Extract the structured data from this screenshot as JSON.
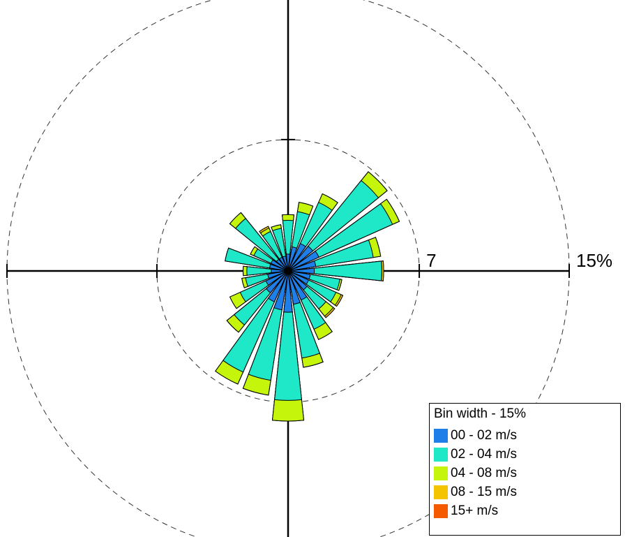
{
  "chart_data": {
    "type": "polar-bar",
    "ring_labels": [
      "7",
      "15%"
    ],
    "ring_values": [
      7,
      15
    ],
    "legend_title": "Bin width - 15%",
    "bins": [
      {
        "label": "00 - 02 m/s",
        "color": "#1e7fe8"
      },
      {
        "label": "02 - 04 m/s",
        "color": "#1ee8c8"
      },
      {
        "label": "04 - 08 m/s",
        "color": "#c4f50a"
      },
      {
        "label": "08 - 15 m/s",
        "color": "#f5c400"
      },
      {
        "label": "15+ m/s",
        "color": "#f55a00"
      }
    ],
    "directions_deg": [
      0,
      15,
      30,
      45,
      60,
      75,
      90,
      105,
      120,
      135,
      150,
      165,
      180,
      195,
      210,
      225,
      240,
      255,
      270,
      285,
      300,
      315,
      330,
      345
    ],
    "cumulative_percent": [
      [
        0.9,
        2.7,
        3.0,
        3.0,
        3.0
      ],
      [
        1.3,
        3.2,
        3.7,
        3.7,
        3.7
      ],
      [
        1.6,
        4.0,
        4.5,
        4.5,
        4.5
      ],
      [
        1.7,
        6.2,
        6.8,
        6.8,
        6.8
      ],
      [
        1.8,
        6.1,
        6.5,
        6.5,
        6.5
      ],
      [
        1.5,
        4.6,
        5.0,
        5.0,
        5.0
      ],
      [
        1.4,
        5.0,
        5.0,
        5.1,
        5.1
      ],
      [
        1.2,
        2.8,
        2.9,
        2.9,
        2.9
      ],
      [
        1.2,
        2.8,
        3.1,
        3.2,
        3.2
      ],
      [
        1.3,
        2.6,
        3.1,
        3.2,
        3.2
      ],
      [
        1.7,
        3.4,
        4.0,
        4.0,
        4.0
      ],
      [
        1.8,
        4.7,
        5.2,
        5.2,
        5.2
      ],
      [
        2.2,
        6.9,
        8.0,
        8.0,
        8.0
      ],
      [
        2.1,
        5.9,
        6.7,
        6.7,
        6.7
      ],
      [
        1.8,
        5.9,
        6.6,
        6.6,
        6.6
      ],
      [
        1.5,
        3.7,
        4.2,
        4.2,
        4.2
      ],
      [
        1.3,
        2.8,
        3.4,
        3.4,
        3.4
      ],
      [
        1.1,
        2.3,
        2.5,
        2.5,
        2.5
      ],
      [
        0.9,
        2.2,
        2.4,
        2.4,
        2.4
      ],
      [
        1.0,
        3.4,
        3.4,
        3.4,
        3.4
      ],
      [
        1.0,
        2.0,
        2.2,
        2.2,
        2.2
      ],
      [
        0.8,
        3.6,
        4.0,
        4.0,
        4.0
      ],
      [
        0.8,
        2.3,
        2.5,
        2.6,
        2.6
      ],
      [
        0.8,
        2.3,
        2.5,
        2.5,
        2.5
      ]
    ]
  }
}
